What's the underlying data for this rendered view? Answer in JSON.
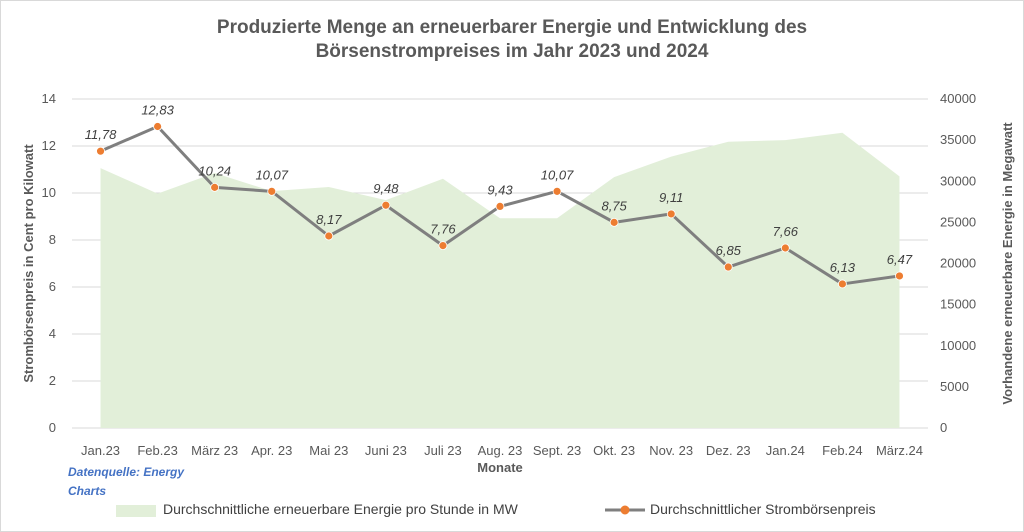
{
  "chart_data": {
    "type": "line",
    "title_line1": "Produzierte Menge an erneuerbarer Energie und Entwicklung des",
    "title_line2": "Börsenstrompreises im Jahr 2023  und 2024",
    "xlabel": "Monate",
    "ylabel": "Strombörsenpreis in Cent pro Kilowatt",
    "y2label": "Vorhandene erneuerbare Energie in Megawatt",
    "ylim": [
      0,
      14
    ],
    "y2lim": [
      0,
      40000
    ],
    "y_ticks": [
      "0",
      "2",
      "4",
      "6",
      "8",
      "10",
      "12",
      "14"
    ],
    "y2_ticks": [
      "0",
      "5000",
      "10000",
      "15000",
      "20000",
      "25000",
      "30000",
      "35000",
      "40000"
    ],
    "categories": [
      "Jan.23",
      "Feb.23",
      "März 23",
      "Apr. 23",
      "Mai 23",
      "Juni 23",
      "Juli 23",
      "Aug. 23",
      "Sept. 23",
      "Okt. 23",
      "Nov. 23",
      "Dez. 23",
      "Jan.24",
      "Feb.24",
      "März.24"
    ],
    "series": [
      {
        "name": "Durchschnittliche erneuerbare Energie pro Stunde in MW",
        "type": "area",
        "axis": "right",
        "color": "#e2efd9",
        "values": [
          31600,
          28500,
          31000,
          28800,
          29300,
          27700,
          30300,
          25500,
          25500,
          30500,
          33000,
          34800,
          35000,
          35900,
          30600
        ]
      },
      {
        "name": "Durchschnittlicher Strombörsenpreis",
        "type": "line",
        "axis": "left",
        "color": "#7f7f7f",
        "marker_color": "#ed7d31",
        "values": [
          11.78,
          12.83,
          10.24,
          10.07,
          8.17,
          9.48,
          7.76,
          9.43,
          10.07,
          8.75,
          9.11,
          6.85,
          7.66,
          6.13,
          6.47
        ],
        "labels": [
          "11,78",
          "12,83",
          "10,24",
          "10,07",
          "8,17",
          "9,48",
          "7,76",
          "9,43",
          "10,07",
          "8,75",
          "9,11",
          "6,85",
          "7,66",
          "6,13",
          "6,47"
        ]
      }
    ],
    "grid": true,
    "legend_position": "bottom"
  },
  "source_line1": "Datenquelle: Energy",
  "source_line2": "Charts",
  "legend": {
    "area_label": "Durchschnittliche erneuerbare Energie pro Stunde in MW",
    "line_label": "Durchschnittlicher Strombörsenpreis"
  }
}
